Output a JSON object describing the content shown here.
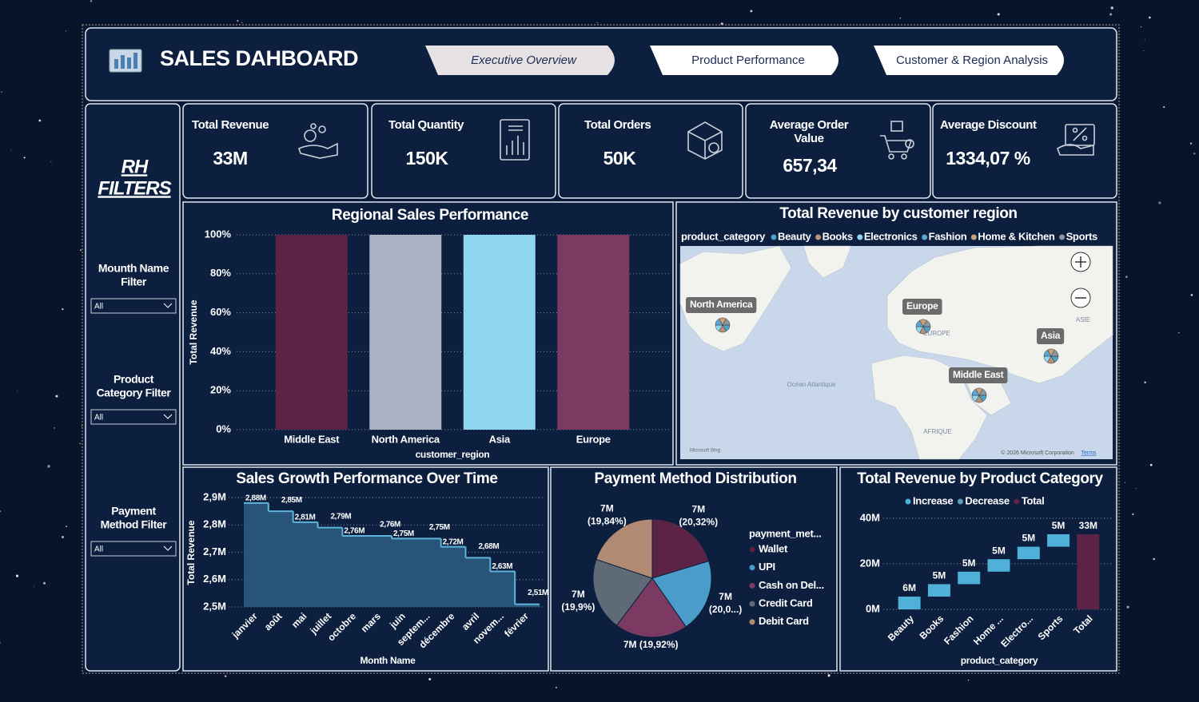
{
  "header": {
    "title": "SALES DAHBOARD",
    "tabs": [
      "Executive Overview",
      "Product Performance",
      "Customer & Region Analysis"
    ]
  },
  "filters": {
    "title": [
      "RH",
      "FILTERS"
    ],
    "items": [
      {
        "label": [
          "Mounth Name",
          "Filter"
        ],
        "value": "All"
      },
      {
        "label": [
          "Product",
          "Category Filter"
        ],
        "value": "All"
      },
      {
        "label": [
          "Payment",
          "Method Filter"
        ],
        "value": "All"
      }
    ]
  },
  "kpis": [
    {
      "label": [
        "Total Revenue"
      ],
      "value": "33M"
    },
    {
      "label": [
        "Total Quantity"
      ],
      "value": "150K"
    },
    {
      "label": [
        "Total Orders"
      ],
      "value": "50K"
    },
    {
      "label": [
        "Average Order",
        "Value"
      ],
      "value": "657,34"
    },
    {
      "label": [
        "Average Discount"
      ],
      "value": "1334,07 %"
    }
  ],
  "map": {
    "title": "Total Revenue by customer region",
    "legend_title": "product_category",
    "legend": [
      {
        "name": "Beauty",
        "color": "#4fa3c9"
      },
      {
        "name": "Books",
        "color": "#b59278"
      },
      {
        "name": "Electronics",
        "color": "#8fd6ef"
      },
      {
        "name": "Fashion",
        "color": "#5aa7d6"
      },
      {
        "name": "Home & Kitchen",
        "color": "#c7a27c"
      },
      {
        "name": "Sports",
        "color": "#8a96a3"
      }
    ],
    "regions": [
      "North America",
      "Europe",
      "Asia",
      "Middle East"
    ],
    "labels": [
      "Océan Atlantique",
      "AFRIQUE",
      "ASIE",
      "EUROPE"
    ],
    "attribution": "© 2026 Microsoft Corporation",
    "terms": "Terms",
    "provider": "Microsoft Bing"
  },
  "chart_data": [
    {
      "type": "bar",
      "title": "Regional Sales Performance",
      "x_label": "customer_region",
      "y_label": "Total Revenue",
      "categories": [
        "Middle East",
        "North America",
        "Asia",
        "Europe"
      ],
      "values": [
        100,
        100,
        100,
        100
      ],
      "colors": [
        "#5c2346",
        "#aab3c3",
        "#8fd6ef",
        "#7a3a62"
      ],
      "ylim": [
        0,
        100
      ],
      "yticks": [
        {
          "value": 0,
          "label": "0%"
        },
        {
          "value": 20,
          "label": "20%"
        },
        {
          "value": 40,
          "label": "40%"
        },
        {
          "value": 60,
          "label": "60%"
        },
        {
          "value": 80,
          "label": "80%"
        },
        {
          "value": 100,
          "label": "100%"
        }
      ],
      "grid": true
    },
    {
      "type": "area",
      "title": "Sales Growth Performance Over Time",
      "x_label": "Month Name",
      "y_label": "Total Revenue",
      "categories": [
        "janvier",
        "août",
        "mai",
        "juillet",
        "octobre",
        "mars",
        "juin",
        "septem...",
        "décembre",
        "avril",
        "novem...",
        "février"
      ],
      "values": [
        2.88,
        2.85,
        2.81,
        2.79,
        2.76,
        2.76,
        2.75,
        2.75,
        2.72,
        2.68,
        2.63,
        2.51
      ],
      "value_labels": [
        "2,88M",
        "2,85M",
        "2,81M",
        "2,79M",
        "2,76M",
        "2,76M",
        "2,75M",
        "2,75M",
        "2,72M",
        "2,68M",
        "2,63M",
        "2,51M"
      ],
      "color": "#2b5a80",
      "line_color": "#5fb4dc",
      "ylim": [
        2.5,
        2.9
      ],
      "yticks": [
        {
          "value": 2.5,
          "label": "2,5M"
        },
        {
          "value": 2.6,
          "label": "2,6M"
        },
        {
          "value": 2.7,
          "label": "2,7M"
        },
        {
          "value": 2.8,
          "label": "2,8M"
        },
        {
          "value": 2.9,
          "label": "2,9M"
        }
      ],
      "grid": true
    },
    {
      "type": "pie",
      "title": "Payment Method Distribution",
      "legend_title": "payment_met...",
      "categories": [
        "Wallet",
        "UPI",
        "Cash on Del...",
        "Credit Card",
        "Debit Card"
      ],
      "values": [
        20.32,
        20.02,
        19.92,
        19.9,
        19.84
      ],
      "value_labels": [
        [
          "7M",
          "(20,32%)"
        ],
        [
          "7M",
          "(20,0...)"
        ],
        [
          "7M (19,92%)"
        ],
        [
          "7M",
          "(19,9%)"
        ],
        [
          "7M",
          "(19,84%)"
        ]
      ],
      "colors": [
        "#5c2346",
        "#4a9cc9",
        "#7a3a62",
        "#5e6b76",
        "#b08a72"
      ]
    },
    {
      "type": "waterfall",
      "title": "Total Revenue by Product Category",
      "x_label": "product_category",
      "legend": [
        {
          "name": "Increase",
          "color": "#4fb0d8"
        },
        {
          "name": "Decrease",
          "color": "#5e9fb5"
        },
        {
          "name": "Total",
          "color": "#5c2346"
        }
      ],
      "categories": [
        "Beauty",
        "Books",
        "Fashion",
        "Home ...",
        "Electro...",
        "Sports",
        "Total"
      ],
      "values": [
        5.6,
        5.48,
        5.48,
        5.48,
        5.48,
        5.48,
        33
      ],
      "value_labels": [
        "6M",
        "5M",
        "5M",
        "5M",
        "5M",
        "5M",
        "33M"
      ],
      "ylim": [
        0,
        40
      ],
      "yticks": [
        {
          "value": 0,
          "label": "0M"
        },
        {
          "value": 20,
          "label": "20M"
        },
        {
          "value": 40,
          "label": "40M"
        }
      ],
      "grid": true
    }
  ]
}
